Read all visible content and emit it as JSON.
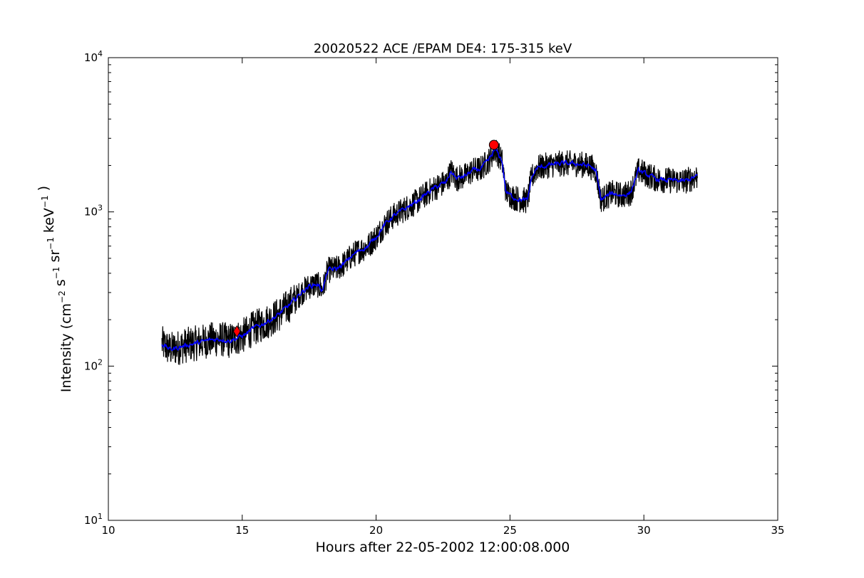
{
  "chart_data": {
    "type": "line",
    "title": "20020522 ACE /EPAM DE4: 175-315 keV",
    "xlabel": "Hours after 22-05-2002 12:00:08.000",
    "ylabel": {
      "base": "Intensity (",
      "parts": [
        {
          "t": "cm",
          "sup": "−2"
        },
        {
          "t": " s",
          "sup": "−1"
        },
        {
          "t": " sr",
          "sup": "−1"
        },
        {
          "t": " keV",
          "sup": "−1"
        }
      ],
      "end": " )"
    },
    "xlim": [
      10,
      35
    ],
    "ylim": [
      10,
      10000
    ],
    "y_scale": "log",
    "grid": false,
    "x_ticks": [
      10,
      15,
      20,
      25,
      30,
      35
    ],
    "x_tick_labels": [
      "10",
      "15",
      "20",
      "25",
      "30",
      "35"
    ],
    "y_ticks": [
      {
        "value": 10,
        "base": "10",
        "exp": "1"
      },
      {
        "value": 100,
        "base": "10",
        "exp": "2"
      },
      {
        "value": 1000,
        "base": "10",
        "exp": "3"
      },
      {
        "value": 10000,
        "base": "10",
        "exp": "4"
      }
    ],
    "series": [
      {
        "color": "#000000",
        "style": "raw",
        "points": [
          [
            12.0,
            140
          ],
          [
            12.3,
            128
          ],
          [
            12.6,
            132
          ],
          [
            13.0,
            138
          ],
          [
            13.4,
            142
          ],
          [
            13.8,
            148
          ],
          [
            14.2,
            150
          ],
          [
            14.5,
            146
          ],
          [
            14.8,
            152
          ],
          [
            15.1,
            160
          ],
          [
            15.4,
            175
          ],
          [
            15.7,
            185
          ],
          [
            16.0,
            198
          ],
          [
            16.3,
            212
          ],
          [
            16.6,
            235
          ],
          [
            16.9,
            262
          ],
          [
            17.2,
            300
          ],
          [
            17.5,
            330
          ],
          [
            17.8,
            340
          ],
          [
            18.0,
            310
          ],
          [
            18.2,
            420
          ],
          [
            18.5,
            425
          ],
          [
            18.8,
            460
          ],
          [
            19.1,
            520
          ],
          [
            19.4,
            565
          ],
          [
            19.7,
            600
          ],
          [
            20.0,
            690
          ],
          [
            20.3,
            820
          ],
          [
            20.6,
            925
          ],
          [
            20.9,
            1000
          ],
          [
            21.2,
            1080
          ],
          [
            21.5,
            1160
          ],
          [
            21.8,
            1280
          ],
          [
            22.1,
            1400
          ],
          [
            22.4,
            1500
          ],
          [
            22.6,
            1540
          ],
          [
            22.8,
            1830
          ],
          [
            23.0,
            1650
          ],
          [
            23.3,
            1700
          ],
          [
            23.6,
            1850
          ],
          [
            23.9,
            1900
          ],
          [
            24.2,
            2150
          ],
          [
            24.45,
            2550
          ],
          [
            24.7,
            2150
          ],
          [
            24.85,
            1350
          ],
          [
            25.1,
            1250
          ],
          [
            25.4,
            1200
          ],
          [
            25.65,
            1180
          ],
          [
            25.8,
            1650
          ],
          [
            26.0,
            1920
          ],
          [
            26.5,
            2020
          ],
          [
            27.0,
            2060
          ],
          [
            27.5,
            2050
          ],
          [
            28.0,
            1980
          ],
          [
            28.2,
            1850
          ],
          [
            28.4,
            1200
          ],
          [
            28.8,
            1320
          ],
          [
            29.2,
            1280
          ],
          [
            29.5,
            1330
          ],
          [
            29.8,
            1850
          ],
          [
            30.0,
            1780
          ],
          [
            30.5,
            1620
          ],
          [
            31.0,
            1600
          ],
          [
            31.5,
            1580
          ],
          [
            32.0,
            1700
          ]
        ]
      },
      {
        "color": "#0000ff",
        "style": "smoothed",
        "points": [
          [
            12.0,
            140
          ],
          [
            12.3,
            128
          ],
          [
            12.6,
            132
          ],
          [
            13.0,
            138
          ],
          [
            13.4,
            142
          ],
          [
            13.8,
            148
          ],
          [
            14.2,
            150
          ],
          [
            14.5,
            146
          ],
          [
            14.8,
            152
          ],
          [
            15.1,
            160
          ],
          [
            15.4,
            175
          ],
          [
            15.7,
            185
          ],
          [
            16.0,
            198
          ],
          [
            16.3,
            212
          ],
          [
            16.6,
            235
          ],
          [
            16.9,
            262
          ],
          [
            17.2,
            300
          ],
          [
            17.5,
            330
          ],
          [
            17.8,
            340
          ],
          [
            18.0,
            310
          ],
          [
            18.2,
            420
          ],
          [
            18.5,
            425
          ],
          [
            18.8,
            460
          ],
          [
            19.1,
            520
          ],
          [
            19.4,
            565
          ],
          [
            19.7,
            600
          ],
          [
            20.0,
            690
          ],
          [
            20.3,
            820
          ],
          [
            20.6,
            925
          ],
          [
            20.9,
            1000
          ],
          [
            21.2,
            1080
          ],
          [
            21.5,
            1160
          ],
          [
            21.8,
            1280
          ],
          [
            22.1,
            1400
          ],
          [
            22.4,
            1500
          ],
          [
            22.6,
            1540
          ],
          [
            22.8,
            1830
          ],
          [
            23.0,
            1650
          ],
          [
            23.3,
            1700
          ],
          [
            23.6,
            1850
          ],
          [
            23.9,
            1900
          ],
          [
            24.2,
            2150
          ],
          [
            24.45,
            2550
          ],
          [
            24.7,
            2150
          ],
          [
            24.85,
            1350
          ],
          [
            25.1,
            1250
          ],
          [
            25.4,
            1200
          ],
          [
            25.65,
            1180
          ],
          [
            25.8,
            1650
          ],
          [
            26.0,
            1920
          ],
          [
            26.5,
            2020
          ],
          [
            27.0,
            2060
          ],
          [
            27.5,
            2050
          ],
          [
            28.0,
            1980
          ],
          [
            28.2,
            1850
          ],
          [
            28.4,
            1200
          ],
          [
            28.8,
            1320
          ],
          [
            29.2,
            1280
          ],
          [
            29.5,
            1330
          ],
          [
            29.8,
            1850
          ],
          [
            30.0,
            1780
          ],
          [
            30.5,
            1620
          ],
          [
            31.0,
            1600
          ],
          [
            31.5,
            1580
          ],
          [
            32.0,
            1700
          ]
        ]
      }
    ],
    "markers": [
      {
        "x": 14.8,
        "y": 168,
        "shape": "diamond",
        "color": "#ff0000"
      },
      {
        "x": 24.4,
        "y": 2720,
        "shape": "circle",
        "color": "#ff0000"
      }
    ]
  }
}
